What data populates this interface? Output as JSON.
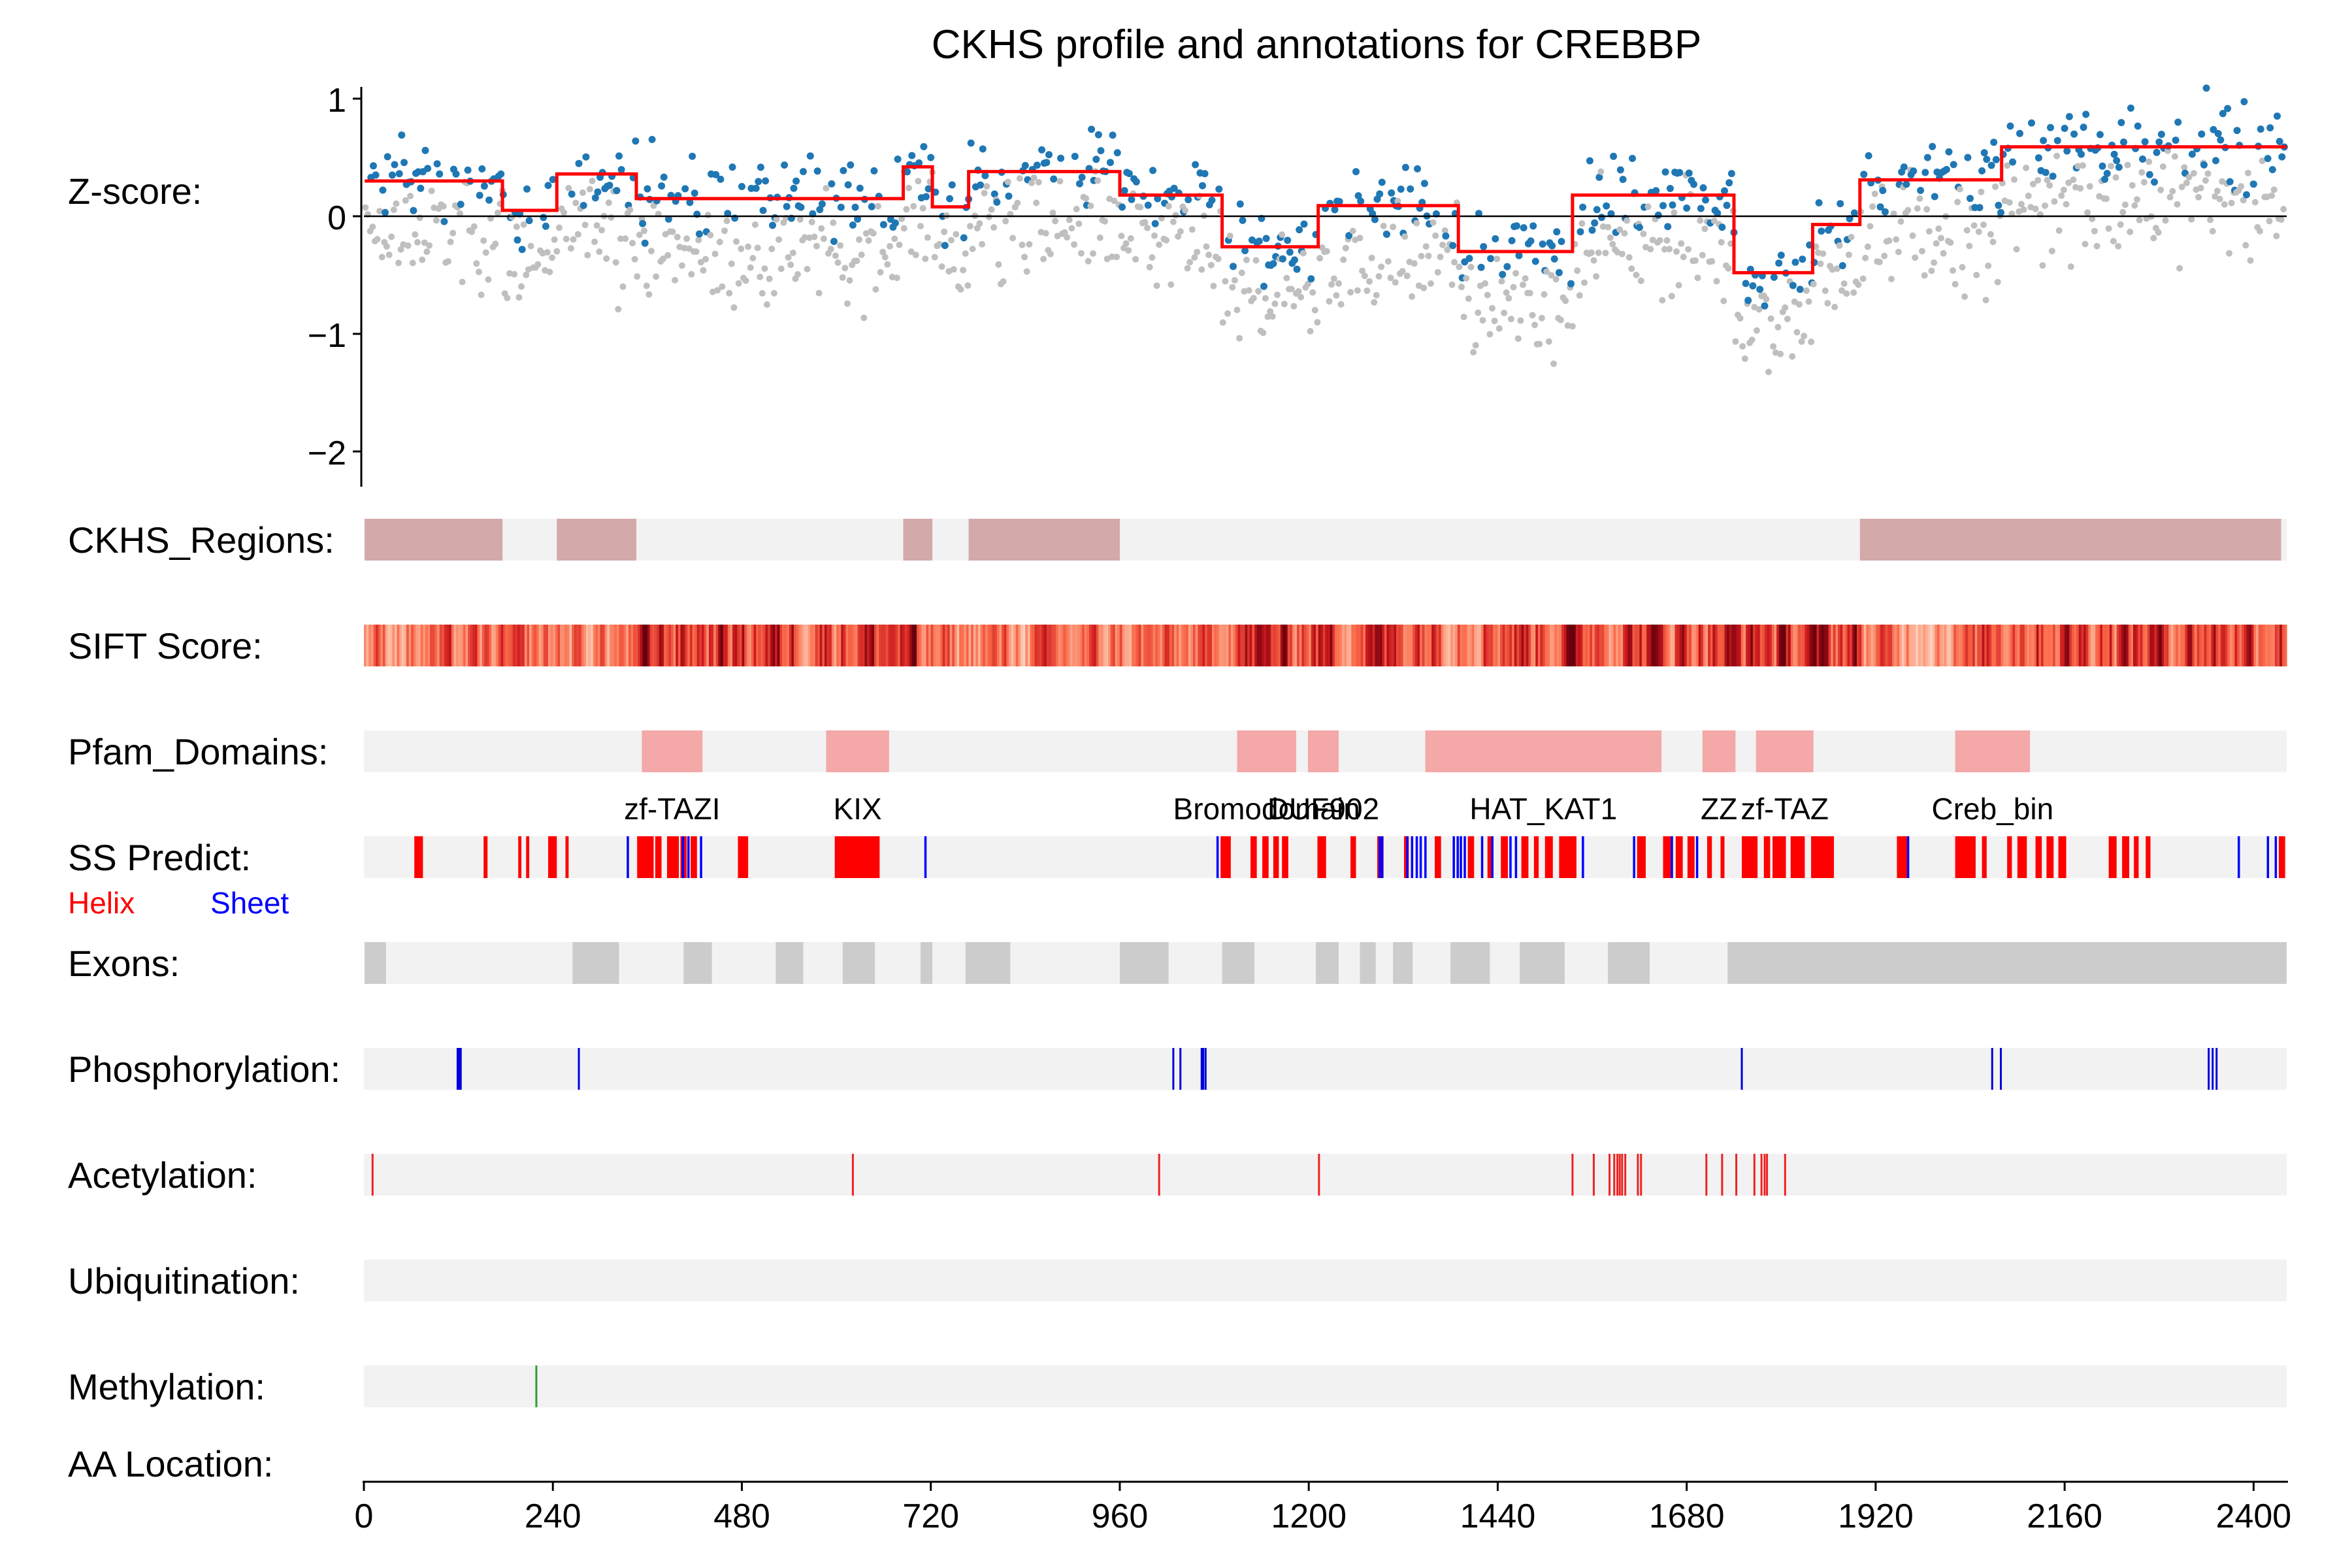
{
  "chart_data": {
    "type": "scatter",
    "title": "CKHS profile and annotations for CREBBP",
    "protein_length": 2442,
    "zscore_panel": {
      "ylabel": "Z-score:",
      "ylim": [
        -2.3,
        1.1
      ],
      "yticks": [
        1,
        0,
        -1,
        -2
      ],
      "ytick_labels": [
        "1",
        "0",
        "−1",
        "−2"
      ],
      "zero_line": true,
      "step_profile": [
        {
          "start": 1,
          "end": 176,
          "value": 0.3
        },
        {
          "start": 176,
          "end": 245,
          "value": 0.05
        },
        {
          "start": 245,
          "end": 346,
          "value": 0.36
        },
        {
          "start": 346,
          "end": 685,
          "value": 0.15
        },
        {
          "start": 685,
          "end": 722,
          "value": 0.42
        },
        {
          "start": 722,
          "end": 768,
          "value": 0.08
        },
        {
          "start": 768,
          "end": 960,
          "value": 0.38
        },
        {
          "start": 960,
          "end": 1090,
          "value": 0.18
        },
        {
          "start": 1090,
          "end": 1212,
          "value": -0.26
        },
        {
          "start": 1212,
          "end": 1390,
          "value": 0.09
        },
        {
          "start": 1390,
          "end": 1535,
          "value": -0.3
        },
        {
          "start": 1535,
          "end": 1740,
          "value": 0.18
        },
        {
          "start": 1740,
          "end": 1840,
          "value": -0.48
        },
        {
          "start": 1840,
          "end": 1900,
          "value": -0.07
        },
        {
          "start": 1900,
          "end": 2080,
          "value": 0.31
        },
        {
          "start": 2080,
          "end": 2442,
          "value": 0.59
        }
      ],
      "scatter_colors": {
        "primary": "#1f77b4",
        "secondary": "#bfbfbf",
        "profile": "#ff0000"
      }
    },
    "tracks": [
      {
        "label": "CKHS_Regions:",
        "type": "regions",
        "color": "#d4a9a9",
        "items": [
          [
            1,
            176
          ],
          [
            245,
            346
          ],
          [
            685,
            722
          ],
          [
            768,
            960
          ],
          [
            1900,
            2435
          ]
        ]
      },
      {
        "label": "SIFT Score:",
        "type": "heat"
      },
      {
        "label": "Pfam_Domains:",
        "type": "domains",
        "color": "#f4a8a8",
        "items": [
          {
            "name": "zf-TAZI",
            "start": 353,
            "end": 430
          },
          {
            "name": "KIX",
            "start": 587,
            "end": 667
          },
          {
            "name": "Bromodomain",
            "start": 1109,
            "end": 1184
          },
          {
            "name": "DUF902",
            "start": 1199,
            "end": 1238
          },
          {
            "name": "HAT_KAT1",
            "start": 1348,
            "end": 1648
          },
          {
            "name": "ZZ",
            "start": 1700,
            "end": 1742
          },
          {
            "name": "zf-TAZ",
            "start": 1768,
            "end": 1841
          },
          {
            "name": "Creb_bin",
            "start": 2021,
            "end": 2116
          }
        ]
      },
      {
        "label": "SS Predict:",
        "type": "ss"
      },
      {
        "label": "Exons:",
        "type": "regions",
        "color": "#cccccc",
        "items": [
          [
            1,
            28
          ],
          [
            265,
            324
          ],
          [
            406,
            442
          ],
          [
            523,
            558
          ],
          [
            608,
            649
          ],
          [
            707,
            722
          ],
          [
            764,
            821
          ],
          [
            960,
            1022
          ],
          [
            1090,
            1131
          ],
          [
            1209,
            1238
          ],
          [
            1265,
            1285
          ],
          [
            1307,
            1332
          ],
          [
            1380,
            1430
          ],
          [
            1468,
            1525
          ],
          [
            1580,
            1633
          ],
          [
            1732,
            2442
          ]
        ]
      },
      {
        "label": "Phosphorylation:",
        "type": "ticks",
        "color": "#0000dd",
        "positions": [
          119,
          121,
          123,
          273,
          1028,
          1037,
          1064,
          1066,
          1069,
          1750,
          2068,
          2079,
          2343,
          2348,
          2353
        ]
      },
      {
        "label": "Acetylation:",
        "type": "ticks",
        "color": "#ee2222",
        "positions": [
          11,
          621,
          1010,
          1213,
          1535,
          1562,
          1582,
          1588,
          1592,
          1595,
          1598,
          1602,
          1618,
          1622,
          1705,
          1725,
          1743,
          1766,
          1775,
          1779,
          1782,
          1805
        ]
      },
      {
        "label": "Ubiquitination:",
        "type": "ticks",
        "color": "#888888",
        "positions": []
      },
      {
        "label": "Methylation:",
        "type": "ticks",
        "color": "#2ca02c",
        "positions": [
          219
        ]
      }
    ],
    "ss_legend": {
      "helix": "Helix",
      "sheet": "Sheet",
      "helix_color": "#ff0000",
      "sheet_color": "#0000ff"
    },
    "ss_helices": [
      [
        64,
        75
      ],
      [
        152,
        157
      ],
      [
        196,
        200
      ],
      [
        206,
        210
      ],
      [
        234,
        245
      ],
      [
        256,
        260
      ],
      [
        347,
        368
      ],
      [
        370,
        378
      ],
      [
        385,
        400
      ],
      [
        402,
        410
      ],
      [
        415,
        423
      ],
      [
        475,
        488
      ],
      [
        598,
        655
      ],
      [
        1088,
        1101
      ],
      [
        1126,
        1134
      ],
      [
        1141,
        1149
      ],
      [
        1155,
        1162
      ],
      [
        1166,
        1174
      ],
      [
        1211,
        1222
      ],
      [
        1253,
        1260
      ],
      [
        1287,
        1295
      ],
      [
        1321,
        1327
      ],
      [
        1360,
        1368
      ],
      [
        1402,
        1410
      ],
      [
        1427,
        1434
      ],
      [
        1444,
        1453
      ],
      [
        1470,
        1479
      ],
      [
        1486,
        1492
      ],
      [
        1500,
        1510
      ],
      [
        1518,
        1540
      ],
      [
        1617,
        1628
      ],
      [
        1650,
        1660
      ],
      [
        1666,
        1675
      ],
      [
        1681,
        1690
      ],
      [
        1706,
        1712
      ],
      [
        1723,
        1728
      ],
      [
        1750,
        1770
      ],
      [
        1778,
        1786
      ],
      [
        1789,
        1806
      ],
      [
        1812,
        1830
      ],
      [
        1838,
        1867
      ],
      [
        1947,
        1960
      ],
      [
        2021,
        2047
      ],
      [
        2055,
        2061
      ],
      [
        2087,
        2093
      ],
      [
        2100,
        2112
      ],
      [
        2123,
        2131
      ],
      [
        2137,
        2146
      ],
      [
        2152,
        2162
      ],
      [
        2216,
        2226
      ],
      [
        2233,
        2242
      ],
      [
        2248,
        2254
      ],
      [
        2263,
        2269
      ],
      [
        2432,
        2440
      ]
    ],
    "ss_sheets": [
      335,
      405,
      412,
      428,
      713,
      1084,
      1290,
      1293,
      1325,
      1331,
      1337,
      1342,
      1348,
      1384,
      1389,
      1393,
      1398,
      1420,
      1433,
      1456,
      1463,
      1548,
      1613,
      1661,
      1693,
      1961,
      2381,
      2418,
      2428
    ],
    "xaxis": {
      "label": "AA Location:",
      "xlim": [
        0,
        2442
      ],
      "ticks": [
        0,
        240,
        480,
        720,
        960,
        1200,
        1440,
        1680,
        1920,
        2160,
        2400
      ]
    }
  }
}
